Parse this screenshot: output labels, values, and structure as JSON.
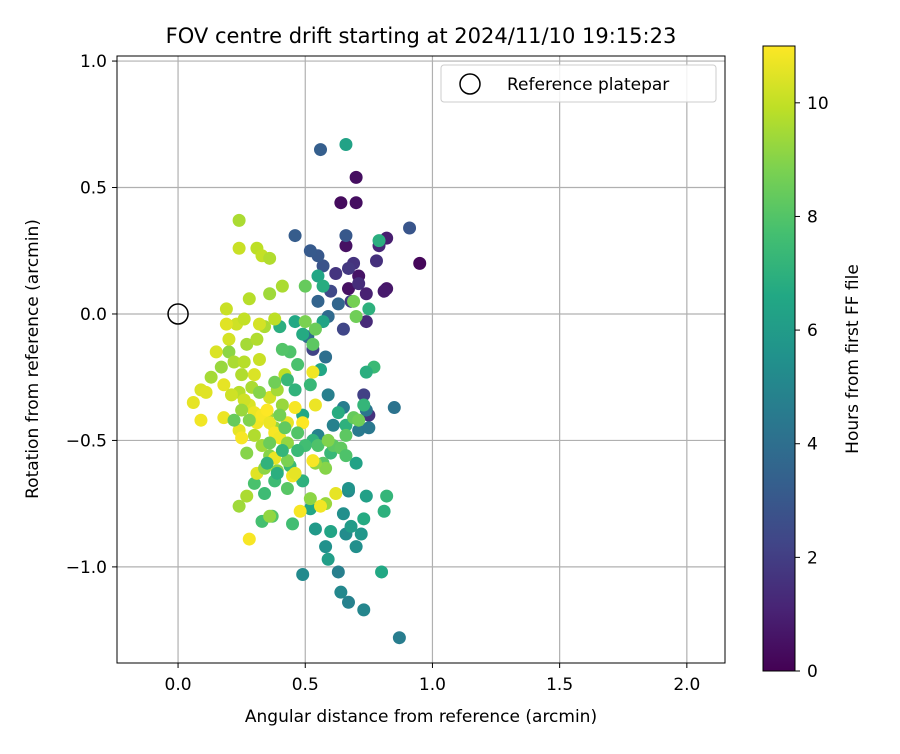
{
  "chart_data": {
    "type": "scatter",
    "title": "FOV centre drift starting at 2024/11/10 19:15:23",
    "xlabel": "Angular distance from reference (arcmin)",
    "ylabel": "Rotation from reference (arcmin)",
    "xlim": [
      -0.24,
      2.15
    ],
    "ylim": [
      -1.38,
      1.02
    ],
    "xticks": [
      0.0,
      0.5,
      1.0,
      1.5,
      2.0
    ],
    "xtick_labels": [
      "0.0",
      "0.5",
      "1.0",
      "1.5",
      "2.0"
    ],
    "yticks": [
      -1.0,
      -0.5,
      0.0,
      0.5,
      1.0
    ],
    "ytick_labels": [
      "−1.0",
      "−0.5",
      "0.0",
      "0.5",
      "1.0"
    ],
    "grid": true,
    "legend": {
      "placement": "top-right",
      "entries": [
        {
          "label": "Reference platepar",
          "marker": "open-circle"
        }
      ]
    },
    "reference_point": {
      "x": 0.0,
      "y": 0.0
    },
    "colorbar": {
      "label": "Hours from first FF file",
      "colormap": "viridis",
      "range": [
        0,
        11
      ],
      "ticks": [
        0,
        2,
        4,
        6,
        8,
        10
      ],
      "tick_labels": [
        "0",
        "2",
        "4",
        "6",
        "8",
        "10"
      ]
    },
    "points": [
      {
        "x": 0.7,
        "y": 0.54,
        "c": 0.4
      },
      {
        "x": 0.64,
        "y": 0.44,
        "c": 0.3
      },
      {
        "x": 0.7,
        "y": 0.44,
        "c": 0.4
      },
      {
        "x": 0.95,
        "y": 0.2,
        "c": 0.2
      },
      {
        "x": 0.66,
        "y": 0.27,
        "c": 0.5
      },
      {
        "x": 0.71,
        "y": 0.15,
        "c": 0.6
      },
      {
        "x": 0.67,
        "y": 0.1,
        "c": 0.5
      },
      {
        "x": 0.82,
        "y": 0.1,
        "c": 0.7
      },
      {
        "x": 0.81,
        "y": 0.09,
        "c": 0.8
      },
      {
        "x": 0.74,
        "y": 0.08,
        "c": 1.0
      },
      {
        "x": 0.82,
        "y": 0.3,
        "c": 0.9
      },
      {
        "x": 0.79,
        "y": 0.27,
        "c": 1.2
      },
      {
        "x": 0.71,
        "y": 0.12,
        "c": 1.4
      },
      {
        "x": 0.69,
        "y": 0.2,
        "c": 1.6
      },
      {
        "x": 0.67,
        "y": 0.18,
        "c": 1.8
      },
      {
        "x": 0.78,
        "y": 0.21,
        "c": 1.5
      },
      {
        "x": 0.62,
        "y": 0.16,
        "c": 1.7
      },
      {
        "x": 0.68,
        "y": 0.05,
        "c": 1.9
      },
      {
        "x": 0.74,
        "y": -0.03,
        "c": 1.3
      },
      {
        "x": 0.75,
        "y": -0.4,
        "c": 1.6
      },
      {
        "x": 0.73,
        "y": -0.32,
        "c": 2.1
      },
      {
        "x": 0.65,
        "y": -0.06,
        "c": 2.3
      },
      {
        "x": 0.53,
        "y": -0.14,
        "c": 2.2
      },
      {
        "x": 0.6,
        "y": 0.09,
        "c": 2.4
      },
      {
        "x": 0.57,
        "y": 0.19,
        "c": 2.8
      },
      {
        "x": 0.55,
        "y": 0.23,
        "c": 3.0
      },
      {
        "x": 0.52,
        "y": 0.25,
        "c": 3.1
      },
      {
        "x": 0.46,
        "y": 0.31,
        "c": 3.2
      },
      {
        "x": 0.91,
        "y": 0.34,
        "c": 2.9
      },
      {
        "x": 0.66,
        "y": 0.31,
        "c": 3.0
      },
      {
        "x": 0.56,
        "y": 0.65,
        "c": 3.3
      },
      {
        "x": 0.55,
        "y": 0.05,
        "c": 3.5
      },
      {
        "x": 0.63,
        "y": 0.04,
        "c": 3.6
      },
      {
        "x": 0.59,
        "y": -0.01,
        "c": 3.8
      },
      {
        "x": 0.51,
        "y": -0.09,
        "c": 3.9
      },
      {
        "x": 0.58,
        "y": -0.17,
        "c": 4.0
      },
      {
        "x": 0.85,
        "y": -0.37,
        "c": 4.2
      },
      {
        "x": 0.74,
        "y": -0.38,
        "c": 4.3
      },
      {
        "x": 0.71,
        "y": -0.46,
        "c": 4.5
      },
      {
        "x": 0.75,
        "y": -0.45,
        "c": 4.4
      },
      {
        "x": 0.65,
        "y": -0.37,
        "c": 4.6
      },
      {
        "x": 0.59,
        "y": -0.32,
        "c": 4.7
      },
      {
        "x": 0.61,
        "y": -0.44,
        "c": 4.8
      },
      {
        "x": 0.55,
        "y": -0.48,
        "c": 4.9
      },
      {
        "x": 0.63,
        "y": -1.02,
        "c": 4.7
      },
      {
        "x": 0.67,
        "y": -1.14,
        "c": 4.8
      },
      {
        "x": 0.73,
        "y": -1.17,
        "c": 5.0
      },
      {
        "x": 0.87,
        "y": -1.28,
        "c": 4.6
      },
      {
        "x": 0.64,
        "y": -1.1,
        "c": 5.1
      },
      {
        "x": 0.49,
        "y": -1.03,
        "c": 5.2
      },
      {
        "x": 0.66,
        "y": -0.87,
        "c": 5.3
      },
      {
        "x": 0.7,
        "y": -0.92,
        "c": 5.4
      },
      {
        "x": 0.58,
        "y": -0.92,
        "c": 5.5
      },
      {
        "x": 0.65,
        "y": -0.79,
        "c": 5.4
      },
      {
        "x": 0.67,
        "y": -0.7,
        "c": 5.1
      },
      {
        "x": 0.67,
        "y": -0.69,
        "c": 5.6
      },
      {
        "x": 0.72,
        "y": -0.87,
        "c": 5.8
      },
      {
        "x": 0.54,
        "y": -0.85,
        "c": 5.9
      },
      {
        "x": 0.59,
        "y": -0.97,
        "c": 6.1
      },
      {
        "x": 0.68,
        "y": -0.84,
        "c": 6.0
      },
      {
        "x": 0.74,
        "y": -0.72,
        "c": 6.2
      },
      {
        "x": 0.7,
        "y": -0.59,
        "c": 6.3
      },
      {
        "x": 0.6,
        "y": -0.86,
        "c": 6.4
      },
      {
        "x": 0.52,
        "y": -0.77,
        "c": 6.5
      },
      {
        "x": 0.8,
        "y": -1.02,
        "c": 6.6
      },
      {
        "x": 0.73,
        "y": -0.81,
        "c": 6.7
      },
      {
        "x": 0.81,
        "y": -0.78,
        "c": 7.0
      },
      {
        "x": 0.82,
        "y": -0.72,
        "c": 7.2
      },
      {
        "x": 0.66,
        "y": 0.67,
        "c": 6.3
      },
      {
        "x": 0.55,
        "y": 0.15,
        "c": 6.5
      },
      {
        "x": 0.57,
        "y": 0.11,
        "c": 6.8
      },
      {
        "x": 0.79,
        "y": 0.29,
        "c": 6.9
      },
      {
        "x": 0.75,
        "y": 0.02,
        "c": 7.0
      },
      {
        "x": 0.57,
        "y": -0.03,
        "c": 6.4
      },
      {
        "x": 0.46,
        "y": -0.03,
        "c": 6.6
      },
      {
        "x": 0.49,
        "y": -0.08,
        "c": 6.7
      },
      {
        "x": 0.4,
        "y": -0.05,
        "c": 6.9
      },
      {
        "x": 0.46,
        "y": -0.3,
        "c": 7.1
      },
      {
        "x": 0.52,
        "y": -0.28,
        "c": 7.3
      },
      {
        "x": 0.63,
        "y": -0.39,
        "c": 6.8
      },
      {
        "x": 0.66,
        "y": -0.44,
        "c": 7.0
      },
      {
        "x": 0.73,
        "y": -0.36,
        "c": 7.2
      },
      {
        "x": 0.77,
        "y": -0.21,
        "c": 7.4
      },
      {
        "x": 0.74,
        "y": -0.23,
        "c": 6.9
      },
      {
        "x": 0.56,
        "y": -0.22,
        "c": 6.5
      },
      {
        "x": 0.49,
        "y": -0.4,
        "c": 6.6
      },
      {
        "x": 0.53,
        "y": -0.5,
        "c": 7.1
      },
      {
        "x": 0.6,
        "y": -0.55,
        "c": 7.3
      },
      {
        "x": 0.49,
        "y": -0.66,
        "c": 7.0
      },
      {
        "x": 0.44,
        "y": -0.6,
        "c": 7.4
      },
      {
        "x": 0.38,
        "y": -0.66,
        "c": 7.5
      },
      {
        "x": 0.45,
        "y": -0.83,
        "c": 7.6
      },
      {
        "x": 0.33,
        "y": -0.82,
        "c": 7.7
      },
      {
        "x": 0.3,
        "y": -0.67,
        "c": 7.8
      },
      {
        "x": 0.34,
        "y": -0.71,
        "c": 7.5
      },
      {
        "x": 0.37,
        "y": -0.8,
        "c": 8.0
      },
      {
        "x": 0.43,
        "y": -0.69,
        "c": 8.1
      },
      {
        "x": 0.55,
        "y": -0.52,
        "c": 7.9
      },
      {
        "x": 0.57,
        "y": -0.59,
        "c": 8.1
      },
      {
        "x": 0.61,
        "y": -0.52,
        "c": 8.2
      },
      {
        "x": 0.64,
        "y": -0.53,
        "c": 8.3
      },
      {
        "x": 0.66,
        "y": -0.56,
        "c": 7.9
      },
      {
        "x": 0.69,
        "y": -0.41,
        "c": 8.4
      },
      {
        "x": 0.71,
        "y": -0.42,
        "c": 8.6
      },
      {
        "x": 0.47,
        "y": -0.2,
        "c": 7.8
      },
      {
        "x": 0.44,
        "y": -0.15,
        "c": 7.9
      },
      {
        "x": 0.41,
        "y": -0.14,
        "c": 8.0
      },
      {
        "x": 0.53,
        "y": -0.12,
        "c": 8.2
      },
      {
        "x": 0.54,
        "y": -0.06,
        "c": 8.5
      },
      {
        "x": 0.5,
        "y": 0.11,
        "c": 8.4
      },
      {
        "x": 0.5,
        "y": -0.03,
        "c": 8.8
      },
      {
        "x": 0.69,
        "y": 0.05,
        "c": 8.7
      },
      {
        "x": 0.7,
        "y": -0.01,
        "c": 8.6
      },
      {
        "x": 0.66,
        "y": -0.48,
        "c": 8.2
      },
      {
        "x": 0.59,
        "y": -0.5,
        "c": 8.9
      },
      {
        "x": 0.58,
        "y": -0.61,
        "c": 9.0
      },
      {
        "x": 0.52,
        "y": -0.73,
        "c": 9.1
      },
      {
        "x": 0.54,
        "y": -0.59,
        "c": 9.2
      },
      {
        "x": 0.58,
        "y": -0.75,
        "c": 9.3
      },
      {
        "x": 0.36,
        "y": -0.56,
        "c": 9.0
      },
      {
        "x": 0.39,
        "y": -0.62,
        "c": 9.1
      },
      {
        "x": 0.38,
        "y": -0.45,
        "c": 9.3
      },
      {
        "x": 0.35,
        "y": -0.4,
        "c": 9.4
      },
      {
        "x": 0.27,
        "y": -0.55,
        "c": 9.0
      },
      {
        "x": 0.24,
        "y": -0.76,
        "c": 9.4
      },
      {
        "x": 0.27,
        "y": -0.72,
        "c": 9.6
      },
      {
        "x": 0.36,
        "y": -0.8,
        "c": 9.2
      },
      {
        "x": 0.13,
        "y": -0.25,
        "c": 9.5
      },
      {
        "x": 0.17,
        "y": -0.21,
        "c": 9.3
      },
      {
        "x": 0.2,
        "y": -0.15,
        "c": 9.1
      },
      {
        "x": 0.22,
        "y": -0.19,
        "c": 9.6
      },
      {
        "x": 0.25,
        "y": -0.24,
        "c": 9.7
      },
      {
        "x": 0.24,
        "y": -0.31,
        "c": 9.8
      },
      {
        "x": 0.27,
        "y": -0.12,
        "c": 9.5
      },
      {
        "x": 0.31,
        "y": -0.1,
        "c": 9.7
      },
      {
        "x": 0.34,
        "y": -0.05,
        "c": 9.6
      },
      {
        "x": 0.38,
        "y": -0.02,
        "c": 9.9
      },
      {
        "x": 0.36,
        "y": 0.08,
        "c": 9.4
      },
      {
        "x": 0.41,
        "y": 0.11,
        "c": 9.6
      },
      {
        "x": 0.28,
        "y": 0.06,
        "c": 9.8
      },
      {
        "x": 0.31,
        "y": 0.26,
        "c": 9.9
      },
      {
        "x": 0.33,
        "y": 0.23,
        "c": 10.0
      },
      {
        "x": 0.36,
        "y": 0.22,
        "c": 9.7
      },
      {
        "x": 0.24,
        "y": 0.26,
        "c": 10.1
      },
      {
        "x": 0.24,
        "y": 0.37,
        "c": 9.6
      },
      {
        "x": 0.19,
        "y": 0.02,
        "c": 10.1
      },
      {
        "x": 0.23,
        "y": -0.04,
        "c": 10.2
      },
      {
        "x": 0.26,
        "y": -0.02,
        "c": 10.0
      },
      {
        "x": 0.32,
        "y": -0.04,
        "c": 10.3
      },
      {
        "x": 0.15,
        "y": -0.15,
        "c": 10.4
      },
      {
        "x": 0.19,
        "y": -0.04,
        "c": 10.5
      },
      {
        "x": 0.2,
        "y": -0.1,
        "c": 10.3
      },
      {
        "x": 0.18,
        "y": -0.28,
        "c": 10.6
      },
      {
        "x": 0.21,
        "y": -0.32,
        "c": 10.2
      },
      {
        "x": 0.09,
        "y": -0.3,
        "c": 10.4
      },
      {
        "x": 0.11,
        "y": -0.31,
        "c": 10.5
      },
      {
        "x": 0.06,
        "y": -0.35,
        "c": 10.6
      },
      {
        "x": 0.09,
        "y": -0.42,
        "c": 10.8
      },
      {
        "x": 0.18,
        "y": -0.41,
        "c": 10.7
      },
      {
        "x": 0.24,
        "y": -0.46,
        "c": 10.6
      },
      {
        "x": 0.25,
        "y": -0.49,
        "c": 10.9
      },
      {
        "x": 0.28,
        "y": -0.36,
        "c": 10.4
      },
      {
        "x": 0.3,
        "y": -0.39,
        "c": 10.7
      },
      {
        "x": 0.31,
        "y": -0.43,
        "c": 10.8
      },
      {
        "x": 0.33,
        "y": -0.4,
        "c": 10.9
      },
      {
        "x": 0.35,
        "y": -0.38,
        "c": 11.0
      },
      {
        "x": 0.36,
        "y": -0.43,
        "c": 10.7
      },
      {
        "x": 0.38,
        "y": -0.47,
        "c": 10.9
      },
      {
        "x": 0.4,
        "y": -0.49,
        "c": 10.8
      },
      {
        "x": 0.43,
        "y": -0.43,
        "c": 10.6
      },
      {
        "x": 0.46,
        "y": -0.37,
        "c": 10.9
      },
      {
        "x": 0.49,
        "y": -0.43,
        "c": 11.0
      },
      {
        "x": 0.45,
        "y": -0.64,
        "c": 10.8
      },
      {
        "x": 0.46,
        "y": -0.63,
        "c": 10.6
      },
      {
        "x": 0.53,
        "y": -0.58,
        "c": 10.9
      },
      {
        "x": 0.54,
        "y": -0.36,
        "c": 10.7
      },
      {
        "x": 0.53,
        "y": -0.23,
        "c": 10.8
      },
      {
        "x": 0.38,
        "y": -0.57,
        "c": 10.7
      },
      {
        "x": 0.31,
        "y": -0.63,
        "c": 10.5
      },
      {
        "x": 0.48,
        "y": -0.78,
        "c": 10.9
      },
      {
        "x": 0.56,
        "y": -0.76,
        "c": 10.8
      },
      {
        "x": 0.62,
        "y": -0.71,
        "c": 10.6
      },
      {
        "x": 0.28,
        "y": -0.89,
        "c": 10.9
      },
      {
        "x": 0.3,
        "y": -0.24,
        "c": 10.4
      },
      {
        "x": 0.26,
        "y": -0.34,
        "c": 10.2
      },
      {
        "x": 0.36,
        "y": -0.33,
        "c": 10.3
      },
      {
        "x": 0.42,
        "y": -0.24,
        "c": 9.9
      },
      {
        "x": 0.32,
        "y": -0.18,
        "c": 10.1
      },
      {
        "x": 0.26,
        "y": -0.19,
        "c": 9.8
      },
      {
        "x": 0.29,
        "y": -0.29,
        "c": 9.6
      },
      {
        "x": 0.39,
        "y": -0.3,
        "c": 9.5
      },
      {
        "x": 0.41,
        "y": -0.36,
        "c": 9.3
      },
      {
        "x": 0.43,
        "y": -0.51,
        "c": 9.2
      },
      {
        "x": 0.33,
        "y": -0.52,
        "c": 9.4
      },
      {
        "x": 0.3,
        "y": -0.48,
        "c": 9.7
      },
      {
        "x": 0.34,
        "y": -0.61,
        "c": 9.1
      },
      {
        "x": 0.43,
        "y": -0.58,
        "c": 8.8
      },
      {
        "x": 0.4,
        "y": -0.4,
        "c": 8.7
      },
      {
        "x": 0.36,
        "y": -0.51,
        "c": 8.5
      },
      {
        "x": 0.42,
        "y": -0.45,
        "c": 8.3
      },
      {
        "x": 0.47,
        "y": -0.47,
        "c": 8.0
      },
      {
        "x": 0.5,
        "y": -0.52,
        "c": 7.6
      },
      {
        "x": 0.47,
        "y": -0.54,
        "c": 7.4
      },
      {
        "x": 0.41,
        "y": -0.54,
        "c": 7.2
      },
      {
        "x": 0.39,
        "y": -0.63,
        "c": 6.9
      },
      {
        "x": 0.35,
        "y": -0.59,
        "c": 7.1
      },
      {
        "x": 0.43,
        "y": -0.26,
        "c": 7.3
      },
      {
        "x": 0.38,
        "y": -0.27,
        "c": 8.6
      },
      {
        "x": 0.32,
        "y": -0.31,
        "c": 9.0
      },
      {
        "x": 0.28,
        "y": -0.42,
        "c": 8.9
      },
      {
        "x": 0.25,
        "y": -0.38,
        "c": 9.3
      },
      {
        "x": 0.22,
        "y": -0.42,
        "c": 8.4
      }
    ]
  }
}
